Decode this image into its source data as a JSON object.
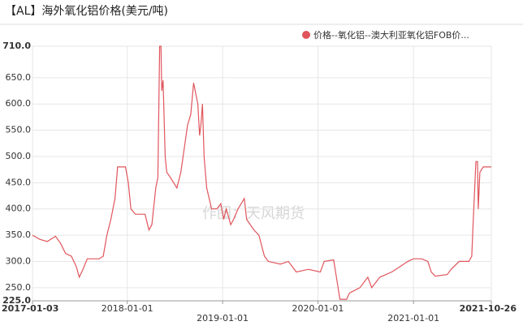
{
  "chart_data": {
    "type": "line",
    "title": "【AL】海外氧化铝价格(美元/吨)",
    "watermark": "作图：天风期货",
    "legend": "top-right",
    "grid": true,
    "x": [
      "2017-01-03",
      "2017-02-01",
      "2017-03-01",
      "2017-04-01",
      "2017-04-20",
      "2017-05-10",
      "2017-06-01",
      "2017-06-20",
      "2017-07-01",
      "2017-07-15",
      "2017-08-01",
      "2017-09-15",
      "2017-10-01",
      "2017-10-15",
      "2017-10-30",
      "2017-11-15",
      "2017-11-25",
      "2017-12-25",
      "2018-01-05",
      "2018-01-15",
      "2018-02-01",
      "2018-03-10",
      "2018-03-25",
      "2018-04-05",
      "2018-04-20",
      "2018-04-28",
      "2018-05-05",
      "2018-05-10",
      "2018-05-13",
      "2018-05-18",
      "2018-05-26",
      "2018-06-01",
      "2018-06-15",
      "2018-07-10",
      "2018-07-25",
      "2018-08-20",
      "2018-09-01",
      "2018-09-12",
      "2018-09-20",
      "2018-09-28",
      "2018-10-05",
      "2018-10-10",
      "2018-10-16",
      "2018-10-22",
      "2018-11-01",
      "2018-11-20",
      "2018-12-10",
      "2018-12-25",
      "2019-01-05",
      "2019-01-15",
      "2019-02-01",
      "2019-02-12",
      "2019-03-01",
      "2019-03-25",
      "2019-04-03",
      "2019-05-01",
      "2019-05-20",
      "2019-06-10",
      "2019-06-25",
      "2019-08-10",
      "2019-09-10",
      "2019-10-10",
      "2019-11-25",
      "2020-01-10",
      "2020-01-25",
      "2020-03-01",
      "2020-03-15",
      "2020-03-25",
      "2020-04-20",
      "2020-05-01",
      "2020-06-10",
      "2020-07-10",
      "2020-07-25",
      "2020-08-25",
      "2020-10-10",
      "2020-11-10",
      "2020-12-10",
      "2021-01-01",
      "2021-02-01",
      "2021-02-25",
      "2021-03-10",
      "2021-03-25",
      "2021-05-10",
      "2021-05-25",
      "2021-06-25",
      "2021-08-01",
      "2021-08-12",
      "2021-08-18",
      "2021-08-28",
      "2021-09-03",
      "2021-09-06",
      "2021-09-12",
      "2021-09-25",
      "2021-10-26"
    ],
    "series": [
      {
        "name": "价格--氧化铝--澳大利亚氧化铝FOB价...",
        "color": "#e0555c",
        "values": [
          350,
          342,
          338,
          348,
          335,
          315,
          310,
          290,
          270,
          285,
          305,
          305,
          310,
          350,
          380,
          420,
          480,
          480,
          450,
          400,
          390,
          390,
          360,
          370,
          440,
          460,
          710,
          710,
          625,
          645,
          500,
          470,
          460,
          440,
          470,
          560,
          580,
          640,
          620,
          600,
          540,
          560,
          600,
          500,
          440,
          400,
          400,
          410,
          380,
          400,
          370,
          380,
          400,
          420,
          380,
          360,
          350,
          310,
          300,
          295,
          300,
          280,
          285,
          280,
          300,
          303,
          260,
          228,
          228,
          240,
          250,
          270,
          250,
          270,
          280,
          290,
          300,
          305,
          305,
          300,
          280,
          272,
          275,
          285,
          300,
          300,
          310,
          380,
          490,
          490,
          400,
          470,
          480,
          480
        ]
      }
    ],
    "xlim": [
      "2017-01-03",
      "2021-10-26"
    ],
    "xticks": [
      "2017-01-03",
      "2018-01-01",
      "2019-01-01",
      "2020-01-01",
      "2021-01-01",
      "2021-10-26"
    ],
    "ylim": [
      225,
      710
    ],
    "yticks": [
      {
        "value": 225,
        "label": "225.0"
      },
      {
        "value": 250,
        "label": "250.0"
      },
      {
        "value": 300,
        "label": "300.0"
      },
      {
        "value": 350,
        "label": "350.0"
      },
      {
        "value": 400,
        "label": "400.0"
      },
      {
        "value": 450,
        "label": "450.0"
      },
      {
        "value": 500,
        "label": "500.0"
      },
      {
        "value": 550,
        "label": "550.0"
      },
      {
        "value": 600,
        "label": "600.0"
      },
      {
        "value": 650,
        "label": "650.0"
      },
      {
        "value": 710,
        "label": "710.0"
      }
    ]
  }
}
